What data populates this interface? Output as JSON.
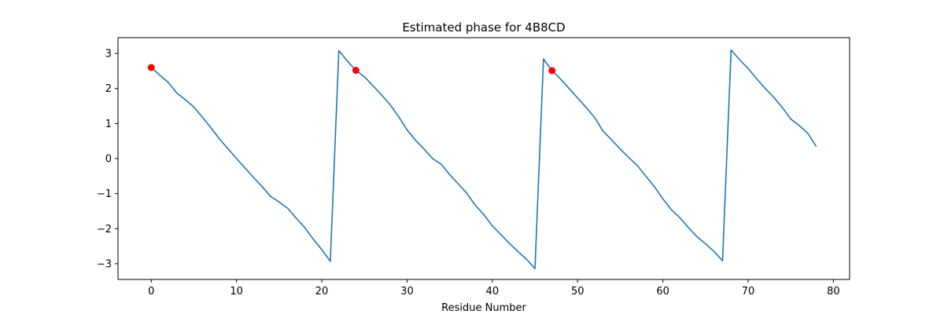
{
  "chart_data": {
    "type": "line",
    "title": "Estimated phase for 4B8CD",
    "xlabel": "Residue Number",
    "ylabel": "",
    "xlim": [
      -3.9,
      81.9
    ],
    "ylim": [
      -3.45,
      3.45
    ],
    "xticks": [
      0,
      10,
      20,
      30,
      40,
      50,
      60,
      70,
      80
    ],
    "yticks": [
      -3,
      -2,
      -1,
      0,
      1,
      2,
      3
    ],
    "grid": false,
    "series": [
      {
        "color": "#1f77b4",
        "x": [
          0,
          1,
          2,
          3,
          4,
          5,
          6,
          7,
          8,
          9,
          10,
          11,
          12,
          13,
          14,
          15,
          16,
          17,
          18,
          19,
          20,
          21,
          22,
          23,
          24,
          25,
          26,
          27,
          28,
          29,
          30,
          31,
          32,
          33,
          34,
          35,
          36,
          37,
          38,
          39,
          40,
          41,
          42,
          43,
          44,
          45,
          46,
          47,
          48,
          49,
          50,
          51,
          52,
          53,
          54,
          55,
          56,
          57,
          58,
          59,
          60,
          61,
          62,
          63,
          64,
          65,
          66,
          67,
          68,
          69,
          70,
          71,
          72,
          73,
          74,
          75,
          76,
          77,
          78
        ],
        "y": [
          2.6,
          2.38,
          2.17,
          1.87,
          1.68,
          1.47,
          1.18,
          0.88,
          0.56,
          0.28,
          0.0,
          -0.27,
          -0.54,
          -0.8,
          -1.08,
          -1.24,
          -1.42,
          -1.7,
          -1.97,
          -2.3,
          -2.6,
          -2.93,
          3.08,
          2.78,
          2.52,
          2.33,
          2.08,
          1.82,
          1.54,
          1.2,
          0.82,
          0.52,
          0.27,
          0.0,
          -0.16,
          -0.46,
          -0.72,
          -0.99,
          -1.33,
          -1.6,
          -1.92,
          -2.17,
          -2.42,
          -2.65,
          -2.87,
          -3.14,
          2.84,
          2.51,
          2.27,
          2.0,
          1.73,
          1.46,
          1.17,
          0.78,
          0.53,
          0.27,
          0.03,
          -0.2,
          -0.5,
          -0.8,
          -1.15,
          -1.46,
          -1.69,
          -1.97,
          -2.23,
          -2.43,
          -2.65,
          -2.92,
          3.1,
          2.82,
          2.57,
          2.28,
          2.0,
          1.75,
          1.46,
          1.13,
          0.94,
          0.72,
          0.34
        ]
      },
      {
        "color": "#ff0000",
        "marker": "o",
        "x": [
          0,
          24,
          47
        ],
        "y": [
          2.6,
          2.52,
          2.51
        ]
      }
    ]
  }
}
